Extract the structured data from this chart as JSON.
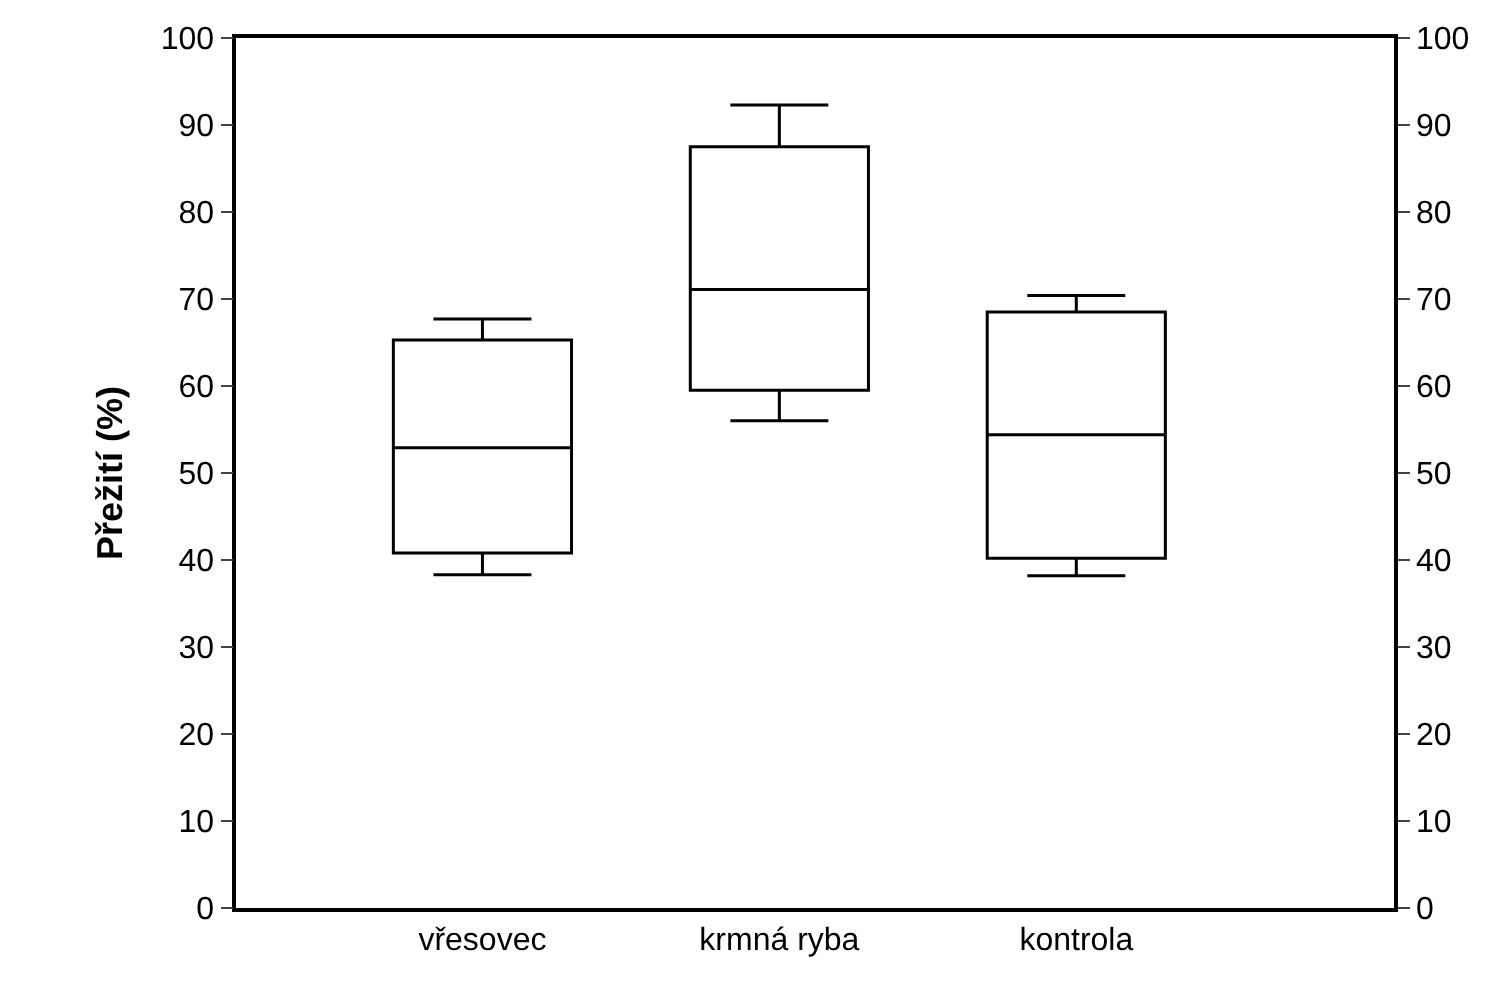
{
  "chart_data": {
    "type": "box",
    "ylabel": "Přežití (%)",
    "categories": [
      "vřesovec",
      "krmná ryba",
      "kontrola"
    ],
    "boxes": [
      {
        "low": 38.3,
        "q1": 40.8,
        "median": 52.9,
        "q3": 65.3,
        "high": 67.7
      },
      {
        "low": 56.0,
        "q1": 59.5,
        "median": 71.1,
        "q3": 87.5,
        "high": 92.3
      },
      {
        "low": 38.2,
        "q1": 40.2,
        "median": 54.4,
        "q3": 68.5,
        "high": 70.4
      }
    ],
    "color": "#000000",
    "ylim": [
      0,
      100
    ],
    "yticks": [
      0,
      10,
      20,
      30,
      40,
      50,
      60,
      70,
      80,
      90,
      100
    ],
    "y2lim": [
      0,
      100
    ],
    "y2ticks": [
      0,
      10,
      20,
      30,
      40,
      50,
      60,
      70,
      80,
      90,
      100
    ]
  }
}
